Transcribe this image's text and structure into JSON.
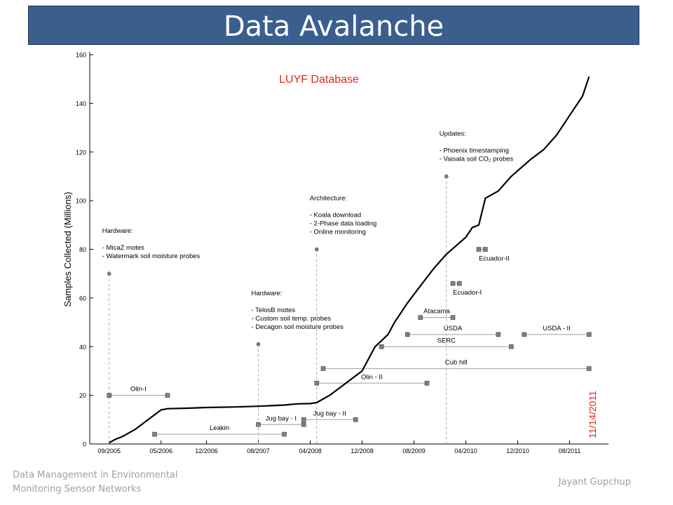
{
  "header": {
    "title": "Data Avalanche"
  },
  "footer": {
    "left_line1": "Data Management in Environmental",
    "left_line2": "Monitoring Sensor Networks",
    "right": "Jayant Gupchup"
  },
  "chart_data": {
    "type": "line",
    "title": "LUYF Database",
    "ylabel": "Samples Collected (Millions)",
    "xlabel": "",
    "ylim": [
      0,
      160
    ],
    "xlim": [
      "2005-06",
      "2012-02"
    ],
    "yticks": [
      0,
      20,
      40,
      60,
      80,
      100,
      120,
      140,
      160
    ],
    "xtick_labels": [
      "09/2005",
      "05/2006",
      "12/2006",
      "08/2007",
      "04/2008",
      "12/2008",
      "08/2009",
      "04/2010",
      "12/2010",
      "08/2011"
    ],
    "xtick_dates": [
      "2005-09",
      "2006-05",
      "2006-12",
      "2007-08",
      "2008-04",
      "2008-12",
      "2009-08",
      "2010-04",
      "2010-12",
      "2011-08"
    ],
    "grid": false,
    "date_marker": {
      "label": "11/14/2011",
      "color": "#e8251b"
    },
    "series": [
      {
        "x": [
          "2005-09",
          "2005-10",
          "2005-11",
          "2006-01",
          "2006-03",
          "2006-05",
          "2006-06",
          "2006-09",
          "2006-12",
          "2007-04",
          "2007-08",
          "2007-12",
          "2008-02",
          "2008-04",
          "2008-05",
          "2008-07",
          "2008-09",
          "2008-12",
          "2009-02",
          "2009-04",
          "2009-05",
          "2009-07",
          "2009-09",
          "2009-11",
          "2010-01",
          "2010-04",
          "2010-05",
          "2010-06",
          "2010-07",
          "2010-09",
          "2010-11",
          "2011-02",
          "2011-04",
          "2011-06",
          "2011-08",
          "2011-10",
          "2011-11"
        ],
        "y": [
          0.5,
          2,
          3,
          6,
          10,
          14,
          14.5,
          14.7,
          15,
          15.2,
          15.5,
          16,
          16.5,
          16.6,
          17,
          20,
          24,
          30,
          40,
          45,
          50,
          58,
          65,
          72,
          78,
          85,
          89,
          90,
          101,
          104,
          110,
          117,
          121,
          127,
          135,
          143,
          151
        ]
      }
    ],
    "annotations": [
      {
        "x": "2005-09",
        "y": 70,
        "lines": [
          "Hardware:",
          "",
          "- MicaZ motes",
          "- Watermark soil moisture probes"
        ]
      },
      {
        "x": "2007-08",
        "y": 41,
        "lines": [
          "Hardware:",
          "",
          "- TelosB motes",
          "- Custom soil temp. probes",
          "- Decagon soil moisture probes"
        ]
      },
      {
        "x": "2008-05",
        "y": 80,
        "lines": [
          "Architecture:",
          "",
          "- Koala download",
          "- 2-Phase data loading",
          "- Online monitoring"
        ]
      },
      {
        "x": "2010-01",
        "y": 110,
        "lines": [
          "Updates:",
          "",
          "- Phoenix timestamping",
          "- Vaisala soil CO₂ probes"
        ]
      }
    ],
    "deployments": [
      {
        "label": "Olin-I",
        "start": "2005-09",
        "end": "2006-06",
        "y": 20
      },
      {
        "label": "Leakin",
        "start": "2006-04",
        "end": "2007-12",
        "y": 4
      },
      {
        "label": "Jug bay - I",
        "start": "2007-08",
        "end": "2008-03",
        "y": 8
      },
      {
        "label": "Jug bay - II",
        "start": "2008-03",
        "end": "2008-11",
        "y": 10
      },
      {
        "label": "Olin - II",
        "start": "2008-05",
        "end": "2009-10",
        "y": 25
      },
      {
        "label": "Cub hill",
        "start": "2008-06",
        "end": "2011-11",
        "y": 31
      },
      {
        "label": "SERC",
        "start": "2009-03",
        "end": "2010-11",
        "y": 40
      },
      {
        "label": "USDA",
        "start": "2009-07",
        "end": "2010-09",
        "y": 45
      },
      {
        "label": "Atacama",
        "start": "2009-09",
        "end": "2010-02",
        "y": 52
      },
      {
        "label": "Ecuador-I",
        "start": "2010-02",
        "end": "2010-03",
        "y": 66
      },
      {
        "label": "Ecuador-II",
        "start": "2010-06",
        "end": "2010-07",
        "y": 80
      },
      {
        "label": "USDA - II",
        "start": "2011-01",
        "end": "2011-11",
        "y": 45
      }
    ],
    "colors": {
      "line": "#000000",
      "marker_fill": "#808080",
      "guide": "#b0b0b0",
      "title": "#e8251b"
    }
  }
}
